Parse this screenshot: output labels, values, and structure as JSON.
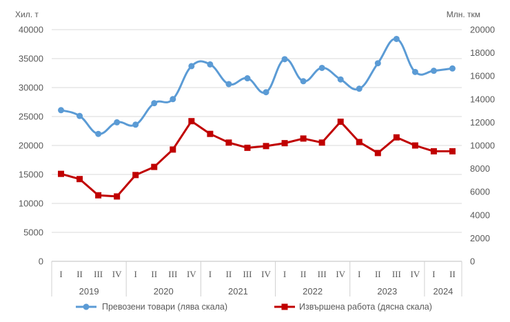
{
  "chart_data": {
    "type": "line",
    "left_unit": "Хил. т",
    "right_unit": "Млн. ткм",
    "y_left": {
      "min": 0,
      "max": 40000,
      "step": 5000
    },
    "y_right": {
      "min": 0,
      "max": 20000,
      "step": 2000
    },
    "y_left_ticks": [
      "0",
      "5000",
      "10000",
      "15000",
      "20000",
      "25000",
      "30000",
      "35000",
      "40000"
    ],
    "y_right_ticks": [
      "0",
      "2000",
      "4000",
      "6000",
      "8000",
      "10000",
      "12000",
      "14000",
      "16000",
      "18000",
      "20000"
    ],
    "categories": [
      "I",
      "II",
      "III",
      "IV",
      "I",
      "II",
      "III",
      "IV",
      "I",
      "II",
      "III",
      "IV",
      "I",
      "II",
      "III",
      "IV",
      "I",
      "II",
      "III",
      "IV",
      "I",
      "II"
    ],
    "year_groups": [
      {
        "label": "2019",
        "count": 4
      },
      {
        "label": "2020",
        "count": 4
      },
      {
        "label": "2021",
        "count": 4
      },
      {
        "label": "2022",
        "count": 4
      },
      {
        "label": "2023",
        "count": 4
      },
      {
        "label": "2024",
        "count": 2
      }
    ],
    "series": [
      {
        "name": "Превозени товари (лява скала)",
        "axis": "left",
        "color": "#5b9bd5",
        "marker": "circle",
        "smooth": true,
        "values": [
          26100,
          25100,
          22000,
          24000,
          23600,
          27300,
          28000,
          33700,
          34000,
          30600,
          31600,
          29200,
          34900,
          31100,
          33400,
          31400,
          29800,
          34200,
          38400,
          32700,
          32900,
          33300
        ]
      },
      {
        "name": "Извършена работа (дясна скала)",
        "axis": "right",
        "color": "#c00000",
        "marker": "square",
        "smooth": false,
        "values": [
          7550,
          7100,
          5700,
          5600,
          7450,
          8150,
          9650,
          12100,
          11000,
          10250,
          9800,
          9950,
          10200,
          10600,
          10250,
          12050,
          10300,
          9350,
          10700,
          10000,
          9500,
          9500
        ]
      }
    ]
  }
}
